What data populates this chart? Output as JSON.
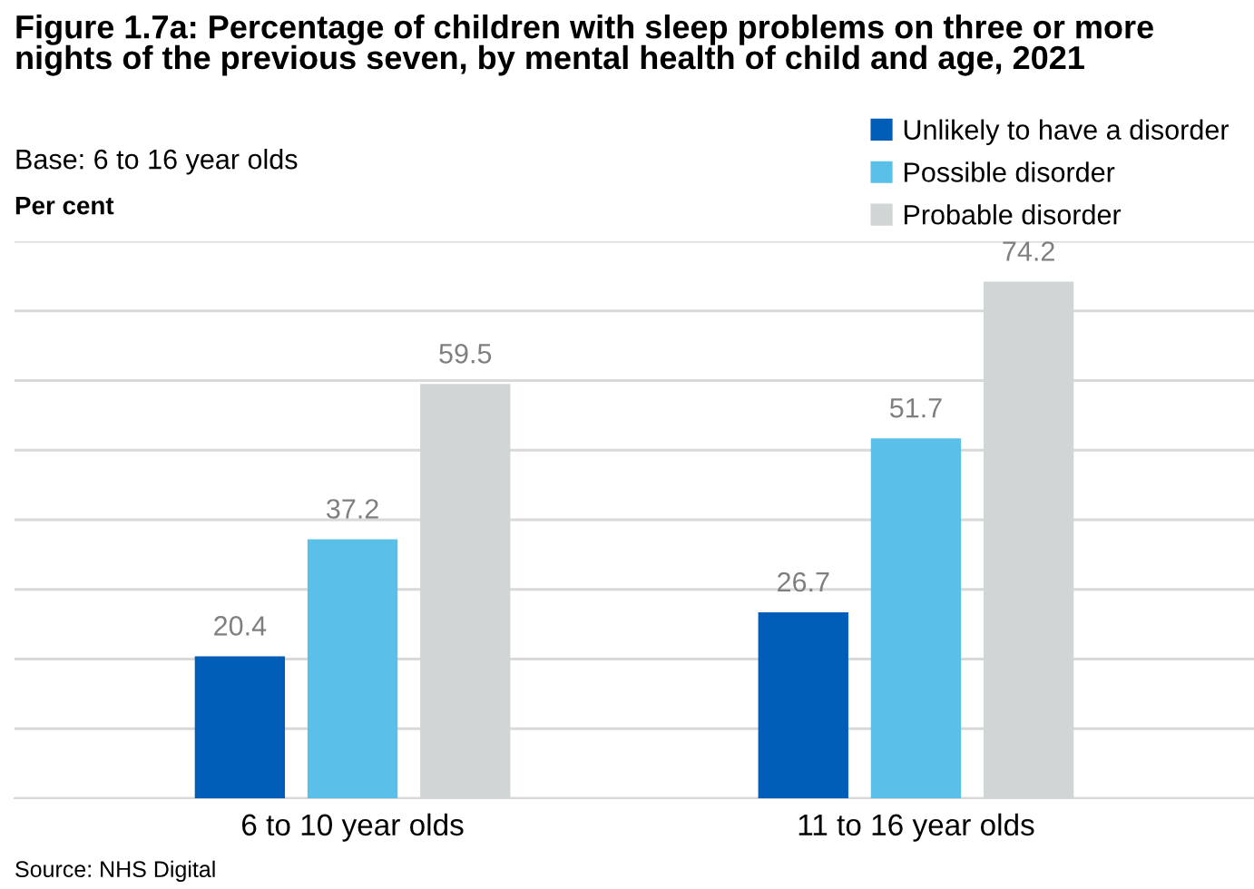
{
  "chart_data": {
    "type": "bar",
    "title": "Figure 1.7a: Percentage of children with sleep problems on three or more nights of the previous seven, by mental health of child and age, 2021",
    "subtitle": "Base: 6 to 16 year olds",
    "ylabel": "Per cent",
    "categories": [
      "6 to 10 year olds",
      "11 to 16 year olds"
    ],
    "series": [
      {
        "name": "Unlikely to have a disorder",
        "color": "#005eb8",
        "values": [
          20.4,
          26.7
        ]
      },
      {
        "name": "Possible disorder",
        "color": "#5bc0e8",
        "values": [
          37.2,
          51.7
        ]
      },
      {
        "name": "Probable disorder",
        "color": "#d0d5d6",
        "values": [
          59.5,
          74.2
        ]
      }
    ],
    "ylim": [
      0,
      80
    ],
    "yticks": [
      {
        "value": 0,
        "label": null
      },
      {
        "value": 10,
        "label": null
      },
      {
        "value": 20,
        "label": null
      },
      {
        "value": 30,
        "label": null
      },
      {
        "value": 40,
        "label": null
      },
      {
        "value": 50,
        "label": null
      },
      {
        "value": 60,
        "label": null
      },
      {
        "value": 70,
        "label": null
      },
      {
        "value": 80,
        "label": null
      }
    ],
    "tick_labels": "x",
    "grid": "y",
    "data_labels": true,
    "legend": "top right",
    "annotations": [
      "Source: NHS Digital"
    ]
  }
}
